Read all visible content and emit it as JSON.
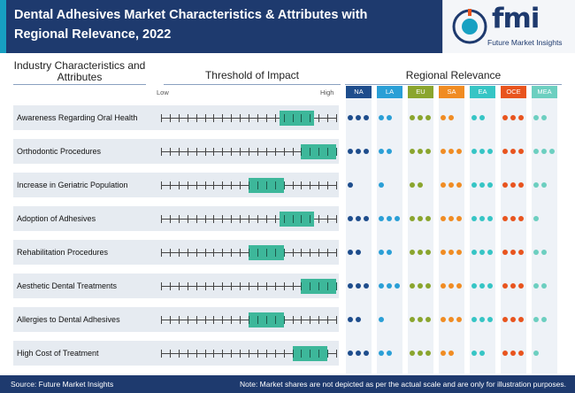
{
  "header": {
    "title": "Dental Adhesives Market Characteristics & Attributes with Regional Relevance, 2022",
    "logo_text": "fmi",
    "logo_subtitle": "Future Market Insights"
  },
  "chart_data": {
    "type": "table",
    "column_headers": {
      "characteristics": "Industry Characteristics and Attributes",
      "threshold": "Threshold of Impact",
      "regional": "Regional Relevance"
    },
    "scale_labels": {
      "low": "Low",
      "high": "High"
    },
    "scale_ticks": 20,
    "regions": [
      {
        "name": "NA",
        "color": "#1e4d8c"
      },
      {
        "name": "LA",
        "color": "#2a9fd6"
      },
      {
        "name": "EU",
        "color": "#8aa52e"
      },
      {
        "name": "SA",
        "color": "#f08c23"
      },
      {
        "name": "EA",
        "color": "#36c5c5"
      },
      {
        "name": "OCE",
        "color": "#e8541e"
      },
      {
        "name": "MEA",
        "color": "#6ccfc0"
      }
    ],
    "rows": [
      {
        "label": "Awareness Regarding Oral Health",
        "impact_start": 13.5,
        "impact_end": 17.5,
        "relevance": [
          3,
          2,
          3,
          2,
          2,
          3,
          2
        ]
      },
      {
        "label": "Orthodontic Procedures",
        "impact_start": 16,
        "impact_end": 20,
        "relevance": [
          3,
          2,
          3,
          3,
          3,
          3,
          3
        ]
      },
      {
        "label": "Increase in Geriatric Population",
        "impact_start": 10,
        "impact_end": 14,
        "relevance": [
          1,
          1,
          2,
          3,
          3,
          3,
          2
        ]
      },
      {
        "label": "Adoption of Adhesives",
        "impact_start": 13.5,
        "impact_end": 17.5,
        "relevance": [
          3,
          3,
          3,
          3,
          3,
          3,
          1
        ]
      },
      {
        "label": "Rehabilitation Procedures",
        "impact_start": 10,
        "impact_end": 14,
        "relevance": [
          2,
          2,
          3,
          3,
          3,
          3,
          2
        ]
      },
      {
        "label": "Aesthetic Dental Treatments",
        "impact_start": 16,
        "impact_end": 20,
        "relevance": [
          3,
          3,
          3,
          3,
          3,
          3,
          2
        ]
      },
      {
        "label": "Allergies to Dental Adhesives",
        "impact_start": 10,
        "impact_end": 14,
        "relevance": [
          2,
          1,
          3,
          3,
          3,
          3,
          2
        ]
      },
      {
        "label": "High Cost of Treatment",
        "impact_start": 15,
        "impact_end": 19,
        "relevance": [
          3,
          2,
          3,
          2,
          2,
          3,
          1
        ]
      }
    ]
  },
  "footer": {
    "source": "Source: Future Market Insights",
    "note": "Note: Market shares are not depicted as per the actual scale and are only for illustration purposes."
  },
  "colors": {
    "navy": "#1e3a6e",
    "teal_bar": "#3db79a",
    "band": "#e6ebf1"
  }
}
